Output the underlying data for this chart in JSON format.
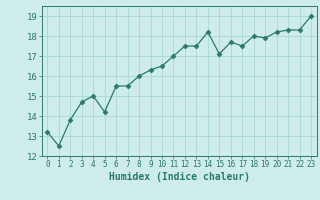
{
  "x": [
    0,
    1,
    2,
    3,
    4,
    5,
    6,
    7,
    8,
    9,
    10,
    11,
    12,
    13,
    14,
    15,
    16,
    17,
    18,
    19,
    20,
    21,
    22,
    23
  ],
  "y": [
    13.2,
    12.5,
    13.8,
    14.7,
    15.0,
    14.2,
    15.5,
    15.5,
    16.0,
    16.3,
    16.5,
    17.0,
    17.5,
    17.5,
    18.2,
    17.1,
    17.7,
    17.5,
    18.0,
    17.9,
    18.2,
    18.3,
    18.3,
    19.0
  ],
  "line_color": "#2a7a6a",
  "marker": "D",
  "marker_size": 2.5,
  "bg_color": "#ceecea",
  "grid_color": "#a8d8d4",
  "xlabel": "Humidex (Indice chaleur)",
  "ylim": [
    12,
    19.5
  ],
  "xlim": [
    -0.5,
    23.5
  ],
  "yticks": [
    12,
    13,
    14,
    15,
    16,
    17,
    18,
    19
  ],
  "xticks": [
    0,
    1,
    2,
    3,
    4,
    5,
    6,
    7,
    8,
    9,
    10,
    11,
    12,
    13,
    14,
    15,
    16,
    17,
    18,
    19,
    20,
    21,
    22,
    23
  ]
}
